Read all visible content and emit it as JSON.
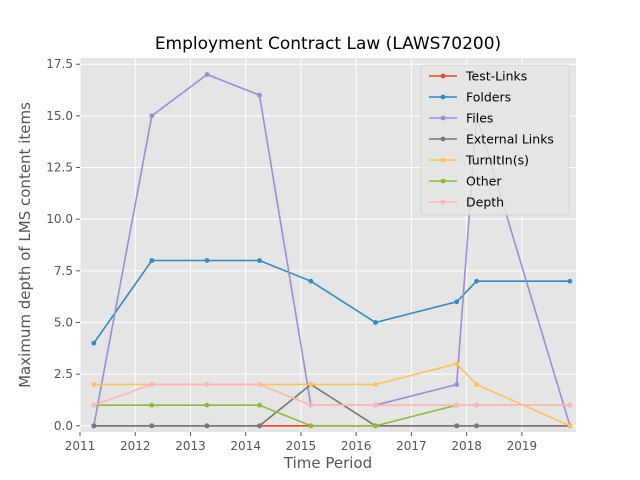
{
  "chart_data": {
    "type": "line",
    "title": "Employment Contract Law (LAWS70200)",
    "xlabel": "Time Period",
    "ylabel": "Maximum depth of LMS content items",
    "xlim": [
      2011.0,
      2019.98
    ],
    "ylim": [
      -0.3,
      17.8
    ],
    "x_ticks": [
      2011,
      2012,
      2013,
      2014,
      2015,
      2016,
      2017,
      2018,
      2019
    ],
    "x_tick_labels": [
      "2011",
      "2012",
      "2013",
      "2014",
      "2015",
      "2016",
      "2017",
      "2018",
      "2019"
    ],
    "y_ticks": [
      0.0,
      2.5,
      5.0,
      7.5,
      10.0,
      12.5,
      15.0,
      17.5
    ],
    "y_tick_labels": [
      "0.0",
      "2.5",
      "5.0",
      "7.5",
      "10.0",
      "12.5",
      "15.0",
      "17.5"
    ],
    "grid": true,
    "legend_position": "top-right",
    "x": [
      2011.25,
      2012.3,
      2013.3,
      2014.25,
      2015.18,
      2016.35,
      2017.82,
      2018.18,
      2019.87
    ],
    "series": [
      {
        "name": "Test-Links",
        "color": "#E24A33",
        "values": [
          0,
          0,
          0,
          0,
          0,
          0,
          0,
          0,
          0
        ]
      },
      {
        "name": "Folders",
        "color": "#348ABD",
        "values": [
          4,
          8,
          8,
          8,
          7,
          5,
          6,
          7,
          7
        ]
      },
      {
        "name": "Files",
        "color": "#988ED5",
        "values": [
          0,
          15,
          17,
          16,
          1,
          1,
          2,
          15,
          0
        ]
      },
      {
        "name": "External Links",
        "color": "#777777",
        "values": [
          0,
          0,
          0,
          0,
          2,
          0,
          0,
          0,
          0
        ]
      },
      {
        "name": "TurnItIn(s)",
        "color": "#FBC15E",
        "values": [
          2,
          2,
          2,
          2,
          2,
          2,
          3,
          2,
          0
        ]
      },
      {
        "name": "Other",
        "color": "#8EBA42",
        "values": [
          1,
          1,
          1,
          1,
          0,
          0,
          1,
          1,
          1
        ]
      },
      {
        "name": "Depth",
        "color": "#FFB5B8",
        "values": [
          1,
          2,
          2,
          2,
          1,
          1,
          1,
          1,
          1
        ]
      }
    ]
  }
}
